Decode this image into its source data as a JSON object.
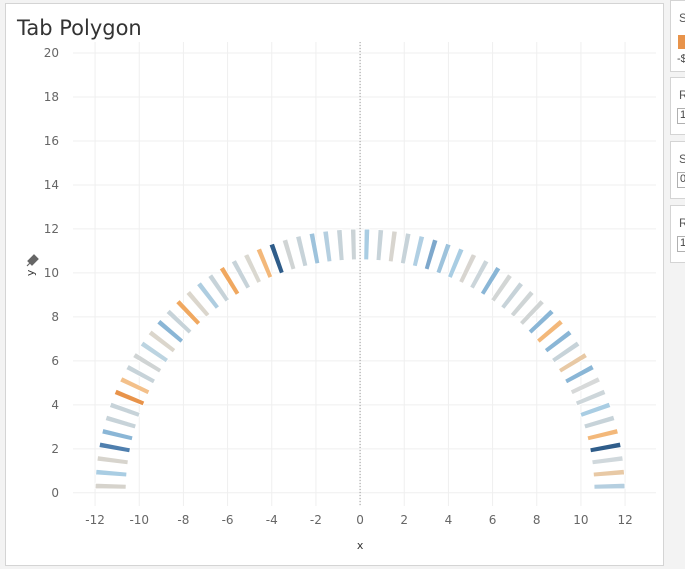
{
  "sheet": {
    "title": "Tab Polygon"
  },
  "side_panels": [
    {
      "label": "S",
      "swatch_color": "#e8934a",
      "value": "-$"
    },
    {
      "label": "R",
      "value": "1"
    },
    {
      "label": "S",
      "value": "0"
    },
    {
      "label": "R",
      "value": "1"
    }
  ],
  "chart_data": {
    "type": "polygon",
    "title": "Tab Polygon",
    "xlabel": "x",
    "ylabel": "y",
    "xlim": [
      -13,
      13.4
    ],
    "ylim": [
      -0.6,
      20.5
    ],
    "xticks": [
      -12,
      -10,
      -8,
      -6,
      -4,
      -2,
      0,
      2,
      4,
      6,
      8,
      10,
      12
    ],
    "yticks": [
      0,
      2,
      4,
      6,
      8,
      10,
      12,
      14,
      16,
      18,
      20
    ],
    "arc": {
      "center": [
        0,
        0
      ],
      "inner_radius": 10.6,
      "outer_radius": 12.0,
      "segments": 60
    },
    "segment_colors": [
      "#b5cfe0",
      "#e8c9a5",
      "#d0d8dc",
      "#2f5d8a",
      "#f3b87a",
      "#c7d3d9",
      "#a9cde3",
      "#cdd6da",
      "#d7d9d9",
      "#8ab6d6",
      "#e8c9a5",
      "#c7d3d9",
      "#8ab6d6",
      "#f3b87a",
      "#8ab6d6",
      "#d0d4d4",
      "#cfd5d6",
      "#c7d3d9",
      "#d3d6d5",
      "#8ab6d6",
      "#cbd5da",
      "#d8d5d0",
      "#a9cde3",
      "#9ec3dc",
      "#7ea8cc",
      "#b0cfe3",
      "#c7d3d9",
      "#d8d5cf",
      "#c7d3d9",
      "#a9cde3",
      "#cbd3d6",
      "#c7d3d9",
      "#b5cfe0",
      "#9ec3dc",
      "#c7d3d9",
      "#d0d4d4",
      "#2f5d8a",
      "#f3b87a",
      "#dad8d0",
      "#c7d3d9",
      "#f0a860",
      "#c7d3d9",
      "#aecde0",
      "#dbd6cc",
      "#f0a860",
      "#c7d3d9",
      "#8ab6d6",
      "#dbd6cc",
      "#bcd4e1",
      "#d0d4d4",
      "#c7d3d9",
      "#f3c08a",
      "#e8934a",
      "#c7d3d9",
      "#c7d3d9",
      "#8ab6d6",
      "#4f7fae",
      "#d7d4cd",
      "#a9cde3",
      "#d6d3cc"
    ]
  }
}
